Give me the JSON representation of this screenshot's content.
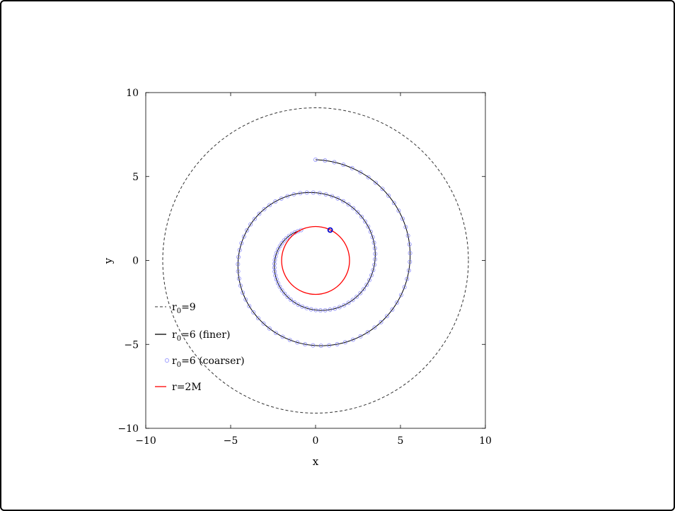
{
  "chart_data": {
    "type": "line",
    "title": "",
    "xlabel": "x",
    "ylabel": "y",
    "xlim": [
      -10,
      10
    ],
    "ylim": [
      -10,
      10
    ],
    "xticks": [
      -10,
      -5,
      0,
      5,
      10
    ],
    "yticks": [
      -10,
      -5,
      0,
      5,
      10
    ],
    "xtick_labels": [
      "−10",
      "−5",
      "0",
      "5",
      "10"
    ],
    "ytick_labels": [
      "−10",
      "−5",
      "0",
      "5",
      "10"
    ],
    "grid": false,
    "legend_position": "bottom-left",
    "series": [
      {
        "id": "r0-9",
        "legend": {
          "main": "r",
          "sub": "0",
          "rest": "=9"
        },
        "style": "dashed",
        "color": "#333333",
        "shape": "circle",
        "center": [
          0,
          0
        ],
        "radius": 9
      },
      {
        "id": "r0-6-finer",
        "legend": {
          "main": "r",
          "sub": "0",
          "rest": "=6 (finer)"
        },
        "style": "solid",
        "color": "#000000",
        "shape": "spiral",
        "start_radius": 6,
        "end_radius": 2,
        "start_angle_deg": 90,
        "end_angle_deg": 64.6,
        "turns_clockwise": 1.93
      },
      {
        "id": "r0-6-coarser",
        "legend": {
          "main": "r",
          "sub": "0",
          "rest": "=6 (coarser)"
        },
        "style": "markers",
        "marker": "open-circle",
        "color": "#8080ff",
        "shape": "spiral",
        "start_radius": 6,
        "end_radius": 2,
        "start_angle_deg": 90,
        "end_angle_deg": 64.6,
        "turns_clockwise": 1.93
      },
      {
        "id": "r-2M",
        "legend": {
          "main": "r=2M",
          "sub": "",
          "rest": ""
        },
        "style": "solid",
        "color": "#ff0000",
        "shape": "circle",
        "center": [
          0,
          0
        ],
        "radius": 2
      }
    ],
    "endpoint": {
      "x": 0.86,
      "y": 1.81,
      "color": "#0000cc"
    }
  }
}
